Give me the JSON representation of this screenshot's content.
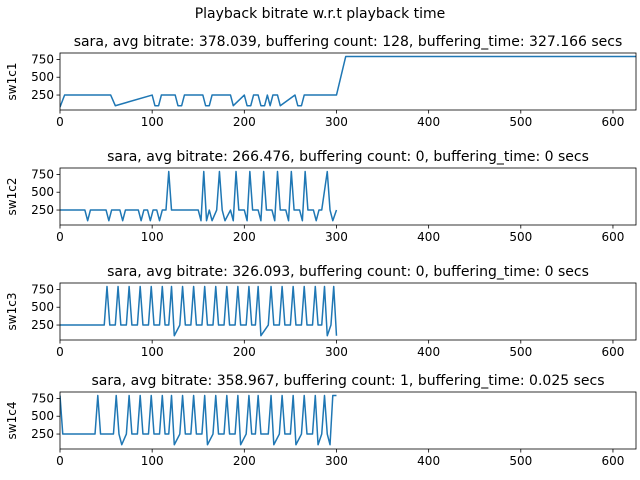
{
  "suptitle": "Playback bitrate w.r.t playback time",
  "chart_data": [
    {
      "type": "line",
      "title": "sara, avg bitrate: 378.039, buffering count: 128, buffering_time: 327.166 secs",
      "ylabel": "sw1c1",
      "xlim": [
        0,
        625
      ],
      "ylim": [
        40,
        840
      ],
      "xticks": [
        0,
        100,
        200,
        300,
        400,
        500,
        600
      ],
      "yticks": [
        250,
        500,
        750
      ],
      "color": "#1f77b4",
      "x": [
        0,
        5,
        55,
        60,
        100,
        103,
        107,
        110,
        125,
        128,
        132,
        135,
        155,
        158,
        162,
        165,
        185,
        188,
        200,
        203,
        207,
        210,
        215,
        218,
        222,
        225,
        228,
        231,
        236,
        239,
        255,
        258,
        262,
        265,
        300,
        310,
        625
      ],
      "y": [
        80,
        250,
        250,
        100,
        250,
        100,
        100,
        250,
        250,
        100,
        100,
        250,
        250,
        100,
        100,
        250,
        250,
        100,
        250,
        100,
        100,
        250,
        250,
        100,
        100,
        250,
        100,
        250,
        250,
        100,
        250,
        100,
        100,
        250,
        250,
        790,
        790
      ]
    },
    {
      "type": "line",
      "title": "sara, avg bitrate: 266.476, buffering count: 0, buffering_time: 0 secs",
      "ylabel": "sw1c2",
      "xlim": [
        0,
        625
      ],
      "ylim": [
        40,
        840
      ],
      "xticks": [
        0,
        100,
        200,
        300,
        400,
        500,
        600
      ],
      "yticks": [
        250,
        500,
        750
      ],
      "color": "#1f77b4",
      "x": [
        0,
        27,
        30,
        33,
        50,
        53,
        56,
        65,
        68,
        71,
        85,
        88,
        91,
        95,
        98,
        101,
        105,
        108,
        111,
        115,
        118,
        121,
        150,
        153,
        156,
        159,
        162,
        165,
        170,
        173,
        176,
        179,
        185,
        188,
        191,
        194,
        200,
        203,
        206,
        209,
        215,
        218,
        221,
        224,
        230,
        233,
        236,
        239,
        245,
        248,
        251,
        254,
        260,
        263,
        266,
        269,
        275,
        278,
        281,
        284,
        290,
        293,
        296,
        300
      ],
      "y": [
        250,
        250,
        100,
        250,
        250,
        100,
        250,
        250,
        100,
        250,
        250,
        100,
        250,
        250,
        100,
        250,
        250,
        100,
        250,
        250,
        790,
        250,
        250,
        100,
        790,
        100,
        250,
        100,
        250,
        790,
        250,
        100,
        250,
        100,
        790,
        250,
        250,
        100,
        790,
        250,
        250,
        100,
        790,
        250,
        250,
        100,
        790,
        250,
        250,
        100,
        790,
        250,
        250,
        100,
        790,
        250,
        250,
        100,
        250,
        250,
        790,
        250,
        100,
        250
      ]
    },
    {
      "type": "line",
      "title": "sara, avg bitrate: 326.093, buffering count: 0, buffering_time: 0 secs",
      "ylabel": "sw1c3",
      "xlim": [
        0,
        625
      ],
      "ylim": [
        40,
        840
      ],
      "xticks": [
        0,
        100,
        200,
        300,
        400,
        500,
        600
      ],
      "yticks": [
        250,
        500,
        750
      ],
      "color": "#1f77b4",
      "x": [
        0,
        48,
        51,
        54,
        60,
        63,
        66,
        72,
        75,
        78,
        84,
        87,
        90,
        96,
        99,
        102,
        108,
        111,
        114,
        118,
        121,
        124,
        130,
        133,
        136,
        142,
        145,
        148,
        154,
        157,
        160,
        166,
        169,
        172,
        178,
        181,
        184,
        190,
        193,
        196,
        202,
        205,
        208,
        212,
        215,
        218,
        226,
        229,
        232,
        238,
        241,
        244,
        250,
        253,
        256,
        262,
        265,
        268,
        274,
        277,
        280,
        284,
        287,
        290,
        294,
        297,
        300
      ],
      "y": [
        250,
        250,
        790,
        250,
        250,
        790,
        250,
        250,
        790,
        250,
        250,
        790,
        250,
        250,
        790,
        250,
        250,
        790,
        250,
        250,
        790,
        100,
        250,
        790,
        250,
        250,
        790,
        250,
        250,
        790,
        250,
        250,
        790,
        250,
        250,
        790,
        250,
        250,
        790,
        250,
        250,
        790,
        250,
        250,
        790,
        100,
        250,
        790,
        250,
        250,
        790,
        250,
        250,
        790,
        250,
        250,
        790,
        250,
        250,
        790,
        250,
        250,
        790,
        100,
        250,
        790,
        100
      ]
    },
    {
      "type": "line",
      "title": "sara, avg bitrate: 358.967, buffering count: 1, buffering_time: 0.025 secs",
      "ylabel": "sw1c4",
      "xlim": [
        0,
        625
      ],
      "ylim": [
        40,
        840
      ],
      "xticks": [
        0,
        100,
        200,
        300,
        400,
        500,
        600
      ],
      "yticks": [
        250,
        500,
        750
      ],
      "color": "#1f77b4",
      "x": [
        0,
        3,
        6,
        38,
        41,
        44,
        58,
        61,
        64,
        67,
        72,
        75,
        78,
        84,
        87,
        90,
        96,
        99,
        102,
        108,
        111,
        114,
        118,
        121,
        124,
        130,
        133,
        136,
        142,
        145,
        148,
        154,
        157,
        160,
        166,
        169,
        172,
        178,
        181,
        184,
        190,
        193,
        196,
        202,
        205,
        208,
        212,
        215,
        218,
        226,
        229,
        232,
        238,
        241,
        244,
        250,
        253,
        256,
        262,
        265,
        268,
        274,
        277,
        280,
        284,
        287,
        290,
        293,
        296,
        300
      ],
      "y": [
        790,
        250,
        250,
        250,
        790,
        250,
        250,
        790,
        250,
        100,
        250,
        790,
        250,
        250,
        790,
        250,
        250,
        790,
        250,
        250,
        790,
        250,
        250,
        790,
        100,
        250,
        790,
        250,
        250,
        790,
        250,
        250,
        790,
        100,
        250,
        790,
        250,
        250,
        790,
        250,
        250,
        790,
        100,
        250,
        790,
        250,
        250,
        790,
        250,
        250,
        790,
        100,
        250,
        790,
        250,
        250,
        790,
        100,
        250,
        790,
        250,
        250,
        790,
        100,
        250,
        790,
        250,
        100,
        790,
        790
      ]
    }
  ]
}
